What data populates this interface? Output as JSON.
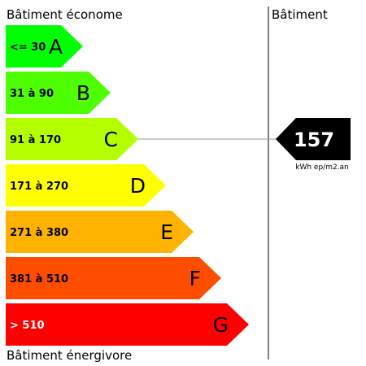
{
  "header": {
    "top_left": "Bâtiment économe",
    "top_right": "Bâtiment",
    "bottom_left": "Bâtiment énergivore"
  },
  "classes": [
    {
      "range": "<= 30",
      "letter": "A",
      "color": "#00ff00",
      "text_color": "#000000"
    },
    {
      "range": "31 à 90",
      "letter": "B",
      "color": "#4dff00",
      "text_color": "#000000"
    },
    {
      "range": "91 à 170",
      "letter": "C",
      "color": "#b3ff00",
      "text_color": "#000000"
    },
    {
      "range": "171 à 270",
      "letter": "D",
      "color": "#ffff00",
      "text_color": "#000000"
    },
    {
      "range": "271 à 380",
      "letter": "E",
      "color": "#ffb300",
      "text_color": "#000000"
    },
    {
      "range": "381 à 510",
      "letter": "F",
      "color": "#ff4d00",
      "text_color": "#000000"
    },
    {
      "range": "> 510",
      "letter": "G",
      "color": "#ff0000",
      "text_color": "#ffffff"
    }
  ],
  "indicator": {
    "value": "157",
    "unit": "kWh ep/m2.an",
    "class_index": 2,
    "color": "#000000",
    "text_color": "#ffffff"
  },
  "line_color": "#999999",
  "divider_color": "#555555"
}
